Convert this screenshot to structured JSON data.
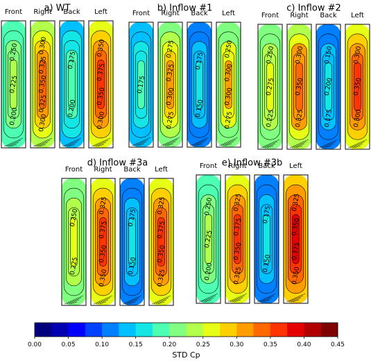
{
  "chart_data": {
    "type": "heatmap",
    "colorbar": {
      "title": "STD Cp",
      "ticks": [
        "0.00",
        "0.05",
        "0.10",
        "0.15",
        "0.20",
        "0.25",
        "0.30",
        "0.35",
        "0.40",
        "0.45"
      ],
      "range": [
        0,
        0.45
      ],
      "colors": [
        "#00007f",
        "#0000b2",
        "#0000ff",
        "#0040ff",
        "#0080ff",
        "#00c0ff",
        "#14e6e6",
        "#4cffb2",
        "#80ff80",
        "#b2ff4c",
        "#e6ff14",
        "#ffd000",
        "#ff9c00",
        "#ff6800",
        "#ff3400",
        "#e60000",
        "#b20000",
        "#7f0000"
      ]
    },
    "panels": [
      {
        "title": "a) WT",
        "faces": [
          {
            "name": "Front",
            "base": 0.23,
            "contours": [
              "0.250",
              "0.225",
              "0.200"
            ]
          },
          {
            "name": "Right",
            "base": 0.34,
            "contours": [
              "0.300",
              "0.325",
              "0.350",
              "0.325",
              "0.300"
            ]
          },
          {
            "name": "Back",
            "base": 0.19,
            "contours": [
              "0.175",
              "0.200"
            ]
          },
          {
            "name": "Left",
            "base": 0.37,
            "contours": [
              "0.350",
              "0.375",
              "0.350",
              "0.300"
            ]
          }
        ]
      },
      {
        "title": "b) Inflow #1",
        "faces": [
          {
            "name": "Front",
            "base": 0.18,
            "contours": [
              "0.175"
            ]
          },
          {
            "name": "Right",
            "base": 0.31,
            "contours": [
              "0.275",
              "0.325",
              "0.300",
              "0.275"
            ]
          },
          {
            "name": "Back",
            "base": 0.16,
            "contours": [
              "0.175",
              "0.150"
            ]
          },
          {
            "name": "Left",
            "base": 0.3,
            "contours": [
              "0.250",
              "0.300",
              "0.300",
              "0.275"
            ]
          }
        ]
      },
      {
        "title": "c) Inflow #2",
        "faces": [
          {
            "name": "Front",
            "base": 0.26,
            "contours": [
              "0.250",
              "0.275",
              "0.225"
            ]
          },
          {
            "name": "Right",
            "base": 0.35,
            "contours": [
              "0.300",
              "0.350",
              "0.325"
            ]
          },
          {
            "name": "Back",
            "base": 0.16,
            "contours": [
              "0.150",
              "0.200",
              "0.175"
            ]
          },
          {
            "name": "Left",
            "base": 0.36,
            "contours": [
              "0.300",
              "0.350",
              "0.300"
            ]
          }
        ]
      },
      {
        "title": "d) Inflow #3a",
        "faces": [
          {
            "name": "Front",
            "base": 0.25,
            "contours": [
              "0.250",
              "0.225"
            ]
          },
          {
            "name": "Right",
            "base": 0.37,
            "contours": [
              "0.325",
              "0.375",
              "0.350",
              "0.350"
            ]
          },
          {
            "name": "Back",
            "base": 0.16,
            "contours": [
              "0.175",
              "0.150"
            ]
          },
          {
            "name": "Left",
            "base": 0.37,
            "contours": [
              "0.325",
              "0.375",
              "0.350",
              "0.325"
            ]
          }
        ]
      },
      {
        "title": "e) Inflow #3b",
        "faces": [
          {
            "name": "Front",
            "base": 0.23,
            "contours": [
              "0.250",
              "0.225",
              "0.200"
            ]
          },
          {
            "name": "Right",
            "base": 0.36,
            "contours": [
              "0.325",
              "0.375",
              "0.350",
              "0.325"
            ]
          },
          {
            "name": "Back",
            "base": 0.16,
            "contours": [
              "0.175",
              "0.150"
            ]
          },
          {
            "name": "Left",
            "base": 0.38,
            "contours": [
              "0.325",
              "0.350",
              "0.375",
              "0.350"
            ]
          }
        ]
      }
    ]
  }
}
